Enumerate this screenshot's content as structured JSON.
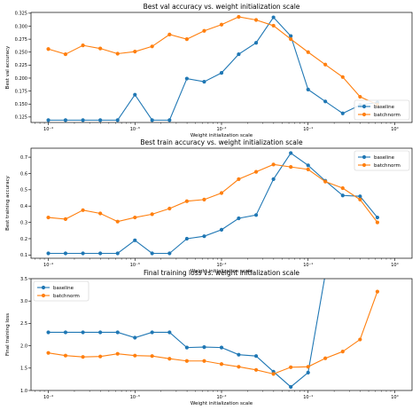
{
  "chart_data": [
    {
      "type": "line",
      "title": "Best val accuracy vs. weight initialization scale",
      "xlabel": "Weight initialization scale",
      "ylabel": "Best val accuracy",
      "xscale": "log",
      "xlim": [
        6.31e-05,
        1.585
      ],
      "ylim": [
        0.1145,
        0.3265
      ],
      "yticks": [
        0.125,
        0.15,
        0.175,
        0.2,
        0.225,
        0.25,
        0.275,
        0.3,
        0.325
      ],
      "ytick_labels": [
        "0.125",
        "0.150",
        "0.175",
        "0.200",
        "0.225",
        "0.250",
        "0.275",
        "0.300",
        "0.325"
      ],
      "xticks": [
        0.0001,
        0.001,
        0.01,
        0.1,
        1
      ],
      "xtick_labels": [
        "10⁻⁴",
        "10⁻³",
        "10⁻²",
        "10⁻¹",
        "10⁰"
      ],
      "legend_position": "lower right",
      "x": [
        0.0001,
        0.000158,
        0.000251,
        0.000398,
        0.000631,
        0.001,
        0.00158,
        0.00251,
        0.00398,
        0.00631,
        0.01,
        0.0158,
        0.0251,
        0.0398,
        0.0631,
        0.1,
        0.158,
        0.251,
        0.398,
        0.631,
        1
      ],
      "series": [
        {
          "name": "baseline",
          "color": "#1f77b4",
          "values": [
            0.119,
            0.119,
            0.119,
            0.119,
            0.119,
            0.168,
            0.119,
            0.119,
            0.199,
            0.193,
            0.21,
            0.246,
            0.268,
            0.317,
            0.281,
            0.178,
            0.155,
            0.132,
            0.148,
            0.153,
            null
          ]
        },
        {
          "name": "batchnorm",
          "color": "#ff7f0e",
          "values": [
            0.256,
            0.246,
            0.263,
            0.257,
            0.247,
            0.251,
            0.261,
            0.284,
            0.275,
            0.291,
            0.303,
            0.318,
            0.312,
            0.301,
            0.275,
            0.25,
            0.226,
            0.202,
            0.164,
            0.149,
            null
          ]
        }
      ]
    },
    {
      "type": "line",
      "title": "Best train accuracy vs. weight initialization scale",
      "xlabel": "Weight initialization scale",
      "ylabel": "Best training accuracy",
      "xscale": "log",
      "xlim": [
        6.31e-05,
        1.585
      ],
      "ylim": [
        0.08,
        0.755
      ],
      "yticks": [
        0.1,
        0.2,
        0.3,
        0.4,
        0.5,
        0.6,
        0.7
      ],
      "ytick_labels": [
        "0.1",
        "0.2",
        "0.3",
        "0.4",
        "0.5",
        "0.6",
        "0.7"
      ],
      "xticks": [
        0.0001,
        0.001,
        0.01,
        0.1,
        1
      ],
      "xtick_labels": [
        "10⁻⁴",
        "10⁻³",
        "10⁻²",
        "10⁻¹",
        "10⁰"
      ],
      "legend_position": "upper right",
      "x": [
        0.0001,
        0.000158,
        0.000251,
        0.000398,
        0.000631,
        0.001,
        0.00158,
        0.00251,
        0.00398,
        0.00631,
        0.01,
        0.0158,
        0.0251,
        0.0398,
        0.0631,
        0.1,
        0.158,
        0.251,
        0.398,
        0.631,
        1
      ],
      "series": [
        {
          "name": "baseline",
          "color": "#1f77b4",
          "values": [
            0.11,
            0.11,
            0.11,
            0.11,
            0.11,
            0.19,
            0.11,
            0.11,
            0.2,
            0.215,
            0.255,
            0.325,
            0.345,
            0.565,
            0.725,
            0.65,
            0.555,
            0.465,
            0.46,
            0.33,
            null
          ]
        },
        {
          "name": "batchnorm",
          "color": "#ff7f0e",
          "values": [
            0.33,
            0.32,
            0.375,
            0.355,
            0.305,
            0.33,
            0.35,
            0.385,
            0.43,
            0.44,
            0.48,
            0.565,
            0.61,
            0.655,
            0.64,
            0.625,
            0.55,
            0.51,
            0.44,
            0.3,
            null
          ]
        }
      ]
    },
    {
      "type": "line",
      "title": "Final training loss vs. weight initialization scale",
      "xlabel": "Weight initialization scale",
      "ylabel": "Final training loss",
      "xscale": "log",
      "xlim": [
        6.31e-05,
        1.585
      ],
      "ylim": [
        1.0,
        3.5
      ],
      "yticks": [
        1.0,
        1.5,
        2.0,
        2.5,
        3.0,
        3.5
      ],
      "ytick_labels": [
        "1.0",
        "1.5",
        "2.0",
        "2.5",
        "3.0",
        "3.5"
      ],
      "xticks": [
        0.0001,
        0.001,
        0.01,
        0.1,
        1
      ],
      "xtick_labels": [
        "10⁻⁴",
        "10⁻³",
        "10⁻²",
        "10⁻¹",
        "10⁰"
      ],
      "legend_position": "upper left",
      "x": [
        0.0001,
        0.000158,
        0.000251,
        0.000398,
        0.000631,
        0.001,
        0.00158,
        0.00251,
        0.00398,
        0.00631,
        0.01,
        0.0158,
        0.0251,
        0.0398,
        0.0631,
        0.1,
        0.158,
        0.251,
        0.398,
        0.631,
        1
      ],
      "series": [
        {
          "name": "baseline",
          "color": "#1f77b4",
          "values": [
            2.3,
            2.3,
            2.3,
            2.3,
            2.3,
            2.18,
            2.3,
            2.3,
            1.96,
            1.97,
            1.96,
            1.8,
            1.77,
            1.42,
            1.08,
            1.4,
            3.6,
            null,
            null,
            null,
            null
          ]
        },
        {
          "name": "batchnorm",
          "color": "#ff7f0e",
          "values": [
            1.84,
            1.78,
            1.75,
            1.76,
            1.82,
            1.78,
            1.77,
            1.71,
            1.66,
            1.66,
            1.59,
            1.53,
            1.46,
            1.37,
            1.52,
            1.53,
            1.72,
            1.87,
            2.14,
            3.21,
            null
          ]
        }
      ]
    }
  ]
}
